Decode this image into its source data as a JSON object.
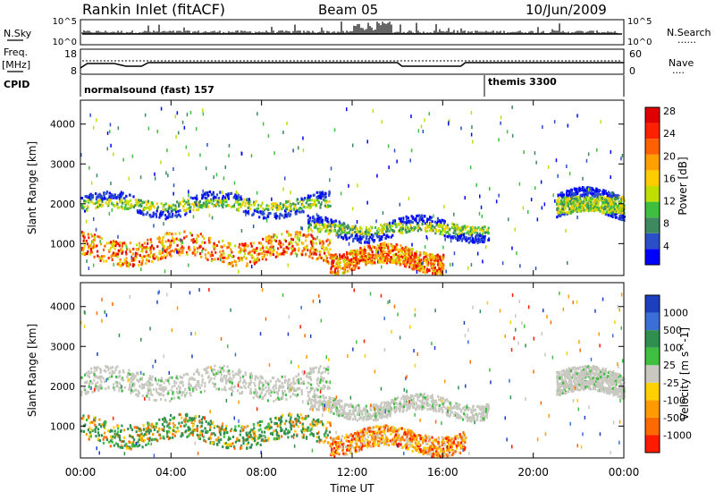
{
  "header": {
    "station": "Rankin Inlet (fitACF)",
    "beam": "Beam 05",
    "date": "10/Jun/2009"
  },
  "nsky_panel": {
    "left_label": "N.Sky",
    "right_label": "N.Search",
    "right_legend": "......",
    "ticks_left": [
      "10^5",
      "10^0"
    ],
    "ticks_right": [
      "10^5",
      "10^0"
    ]
  },
  "freq_panel": {
    "left_label_top": "Freq.",
    "left_label_bottom": "[MHz]",
    "right_label": "Nave",
    "right_legend": "....",
    "ticks_left": [
      "18",
      "8"
    ],
    "ticks_right": [
      "60",
      "0"
    ]
  },
  "cpid_panel": {
    "label": "CPID",
    "segments": [
      {
        "text": "normalsound (fast) 157",
        "start_hour": 0
      },
      {
        "text": "themis 3300",
        "start_hour": 18
      }
    ]
  },
  "chart_data": [
    {
      "type": "heatmap",
      "name": "power",
      "ylabel": "Slant Range [km]",
      "ylim": [
        200,
        4600
      ],
      "xlim_hours": [
        0,
        24
      ],
      "yticks": [
        "1000",
        "2000",
        "3000",
        "4000"
      ],
      "colorbar": {
        "label": "Power [dB]",
        "ticks": [
          "4",
          "8",
          "12",
          "16",
          "20",
          "24",
          "28"
        ],
        "colors": [
          "#0000ff",
          "#2a4fc8",
          "#3e8a60",
          "#3fbf3f",
          "#bfdf00",
          "#ffcc00",
          "#ffa000",
          "#ff6000",
          "#ff2000",
          "#e00000"
        ]
      },
      "bands": [
        {
          "range_km": [
            1800,
            2200
          ],
          "hours": [
            0,
            11
          ],
          "value": "green-yellow"
        },
        {
          "range_km": [
            1200,
            1600
          ],
          "hours": [
            10,
            18
          ],
          "value": "blue-green"
        },
        {
          "range_km": [
            600,
            1200
          ],
          "hours": [
            0,
            11
          ],
          "value": "orange-red"
        },
        {
          "range_km": [
            400,
            900
          ],
          "hours": [
            11,
            16
          ],
          "value": "orange"
        },
        {
          "range_km": [
            1700,
            2300
          ],
          "hours": [
            21,
            24
          ],
          "value": "green-yellow"
        }
      ]
    },
    {
      "type": "heatmap",
      "name": "velocity",
      "xlabel": "Time UT",
      "ylabel": "Slant Range [km]",
      "ylim": [
        200,
        4600
      ],
      "xlim_hours": [
        0,
        24
      ],
      "xticks": [
        "00:00",
        "04:00",
        "08:00",
        "12:00",
        "16:00",
        "20:00",
        "00:00"
      ],
      "yticks": [
        "1000",
        "2000",
        "3000",
        "4000"
      ],
      "colorbar": {
        "label": "Velocity [m s^-1]",
        "ticks": [
          "1000",
          "500",
          "100",
          "25",
          "-25",
          "-100",
          "-500",
          "-1000"
        ],
        "colors": [
          "#1c3fc0",
          "#3a6fd8",
          "#2f8f4f",
          "#3fbf3f",
          "#c8c8c0",
          "#ffd000",
          "#ff9a00",
          "#ff6a00",
          "#ff1a00"
        ]
      },
      "bands": [
        {
          "range_km": [
            1800,
            2400
          ],
          "hours": [
            0,
            11
          ],
          "value": "ground-scatter grey"
        },
        {
          "range_km": [
            1300,
            1700
          ],
          "hours": [
            10,
            18
          ],
          "value": "ground-scatter grey"
        },
        {
          "range_km": [
            600,
            1200
          ],
          "hours": [
            0,
            11
          ],
          "value": "orange / green"
        },
        {
          "range_km": [
            400,
            900
          ],
          "hours": [
            11,
            17
          ],
          "value": "orange"
        },
        {
          "range_km": [
            1800,
            2400
          ],
          "hours": [
            21,
            24
          ],
          "value": "ground-scatter grey"
        }
      ]
    }
  ]
}
